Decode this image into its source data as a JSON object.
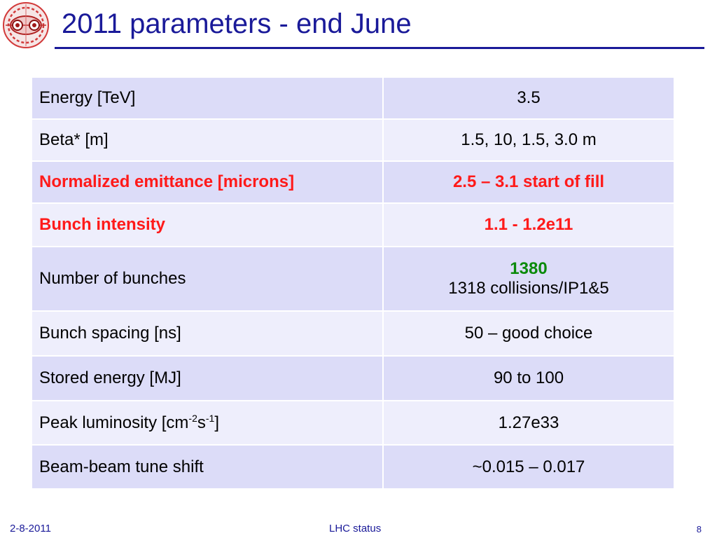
{
  "slide": {
    "title": "2011 parameters - end June"
  },
  "colors": {
    "title": "#1a1a99",
    "row_dark": "#dcdcf8",
    "row_light": "#eeeefc",
    "highlight_red": "#ff1a1a",
    "highlight_green": "#0b8a0b"
  },
  "table": {
    "rows": [
      {
        "label": "Energy [TeV]",
        "value": "3.5",
        "highlight": false
      },
      {
        "label": "Beta* [m]",
        "value": "1.5, 10, 1.5, 3.0  m",
        "highlight": false
      },
      {
        "label": "Normalized emittance [microns]",
        "value": "2.5 – 3.1  start of fill",
        "highlight": true
      },
      {
        "label": "Bunch intensity",
        "value": "1.1 - 1.2e11",
        "highlight": true
      },
      {
        "label": "Number of bunches",
        "value_primary": "1380",
        "value_secondary": "1318 collisions/IP1&5",
        "highlight": false
      },
      {
        "label": "Bunch spacing [ns]",
        "value": "50 – good choice",
        "highlight": false
      },
      {
        "label": "Stored energy [MJ]",
        "value": "90 to 100",
        "highlight": false
      },
      {
        "label_prefix": "Peak luminosity [cm",
        "label_sup1": "-2",
        "label_mid": "s",
        "label_sup2": "-1",
        "label_suffix": "]",
        "value": "1.27e33",
        "highlight": false
      },
      {
        "label": "Beam-beam tune shift",
        "value": "~0.015 – 0.017",
        "highlight": false
      }
    ]
  },
  "footer": {
    "date": "2-8-2011",
    "center": "LHC status",
    "page": "8"
  }
}
